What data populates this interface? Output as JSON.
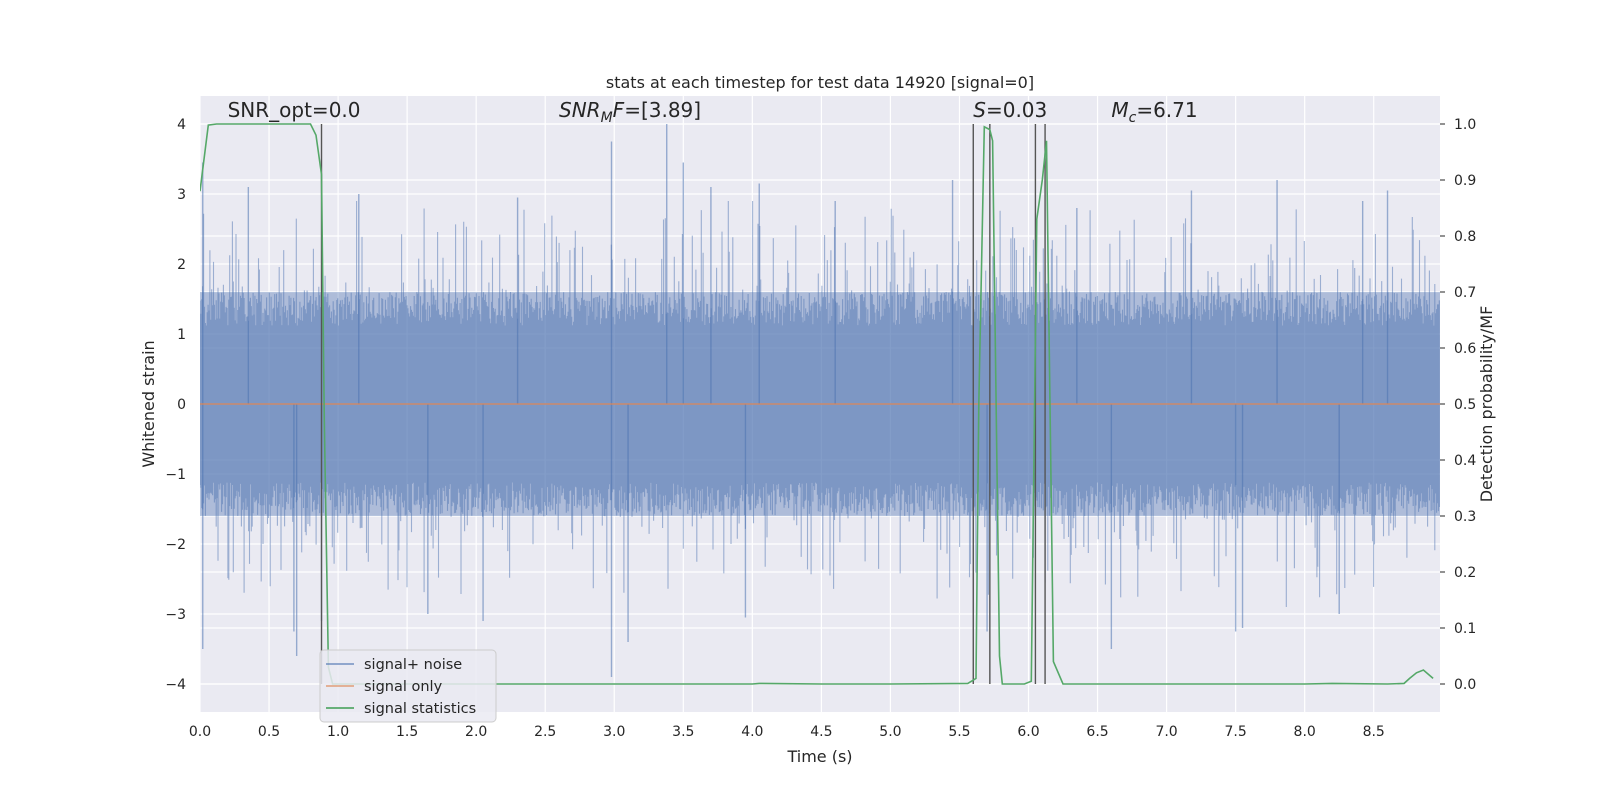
{
  "chart_data": {
    "type": "line",
    "title": "stats at each timestep for test data 14920 [signal=0]",
    "xlabel": "Time (s)",
    "ylabel": "Whitened strain",
    "ylabel_right": "Detection probability/MF",
    "xlim": [
      0.0,
      8.98
    ],
    "ylim": [
      -4.4,
      4.4
    ],
    "ylim_right": [
      -0.05,
      1.05
    ],
    "xticks": [
      "0.0",
      "0.5",
      "1.0",
      "1.5",
      "2.0",
      "2.5",
      "3.0",
      "3.5",
      "4.0",
      "4.5",
      "5.0",
      "5.5",
      "6.0",
      "6.5",
      "7.0",
      "7.5",
      "8.0",
      "8.5"
    ],
    "yticks": [
      "−4",
      "−3",
      "−2",
      "−1",
      "0",
      "1",
      "2",
      "3",
      "4"
    ],
    "yticks_right": [
      "0.0",
      "0.1",
      "0.2",
      "0.3",
      "0.4",
      "0.5",
      "0.6",
      "0.7",
      "0.8",
      "0.9",
      "1.0"
    ],
    "grid": true,
    "annotations": [
      {
        "text": "SNR_opt=0.0",
        "x": 0.2,
        "y": 4.1
      },
      {
        "text": "SNR_MF=[3.89]",
        "x": 2.6,
        "y": 4.1
      },
      {
        "text": "S=0.03",
        "x": 5.6,
        "y": 4.1
      },
      {
        "text": "M_c=6.71",
        "x": 6.6,
        "y": 4.1
      }
    ],
    "series": [
      {
        "name": "signal+ noise",
        "color": "#4c72b0",
        "axis": "left",
        "style": "noise",
        "typical_band": [
          -1.6,
          1.6
        ],
        "spikes": [
          {
            "x": 0.02,
            "y": 3.45
          },
          {
            "x": 0.02,
            "y": -3.5
          },
          {
            "x": 0.35,
            "y": 3.1
          },
          {
            "x": 0.7,
            "y": -3.6
          },
          {
            "x": 0.68,
            "y": -3.25
          },
          {
            "x": 0.88,
            "y": -3.1
          },
          {
            "x": 1.15,
            "y": 3.0
          },
          {
            "x": 1.65,
            "y": -3.0
          },
          {
            "x": 2.05,
            "y": -3.1
          },
          {
            "x": 2.3,
            "y": 2.95
          },
          {
            "x": 2.98,
            "y": 3.75
          },
          {
            "x": 2.98,
            "y": -3.9
          },
          {
            "x": 3.1,
            "y": -3.4
          },
          {
            "x": 3.38,
            "y": 4.0
          },
          {
            "x": 3.5,
            "y": 3.45
          },
          {
            "x": 3.7,
            "y": 3.1
          },
          {
            "x": 3.95,
            "y": -3.05
          },
          {
            "x": 4.05,
            "y": 3.15
          },
          {
            "x": 4.6,
            "y": 2.9
          },
          {
            "x": 5.45,
            "y": 3.2
          },
          {
            "x": 5.7,
            "y": -3.25
          },
          {
            "x": 6.35,
            "y": 2.8
          },
          {
            "x": 6.6,
            "y": -3.5
          },
          {
            "x": 7.18,
            "y": 3.05
          },
          {
            "x": 7.5,
            "y": -3.25
          },
          {
            "x": 7.55,
            "y": -3.2
          },
          {
            "x": 7.8,
            "y": 3.2
          },
          {
            "x": 8.25,
            "y": -3.0
          },
          {
            "x": 8.42,
            "y": 2.9
          },
          {
            "x": 8.6,
            "y": 3.05
          }
        ]
      },
      {
        "name": "signal only",
        "color": "#dd8452",
        "axis": "left",
        "style": "line",
        "x": [
          0.0,
          8.98
        ],
        "y": [
          0.0,
          0.0
        ]
      },
      {
        "name": "signal statistics",
        "color": "#55a868",
        "axis": "right",
        "style": "line",
        "x": [
          0.0,
          0.06,
          0.12,
          0.3,
          0.5,
          0.7,
          0.8,
          0.84,
          0.88,
          0.9,
          0.93,
          0.96,
          1.5,
          2.5,
          3.5,
          4.0,
          4.05,
          4.5,
          5.0,
          5.56,
          5.62,
          5.64,
          5.68,
          5.72,
          5.74,
          5.79,
          5.81,
          5.97,
          6.02,
          6.06,
          6.1,
          6.13,
          6.18,
          6.25,
          6.5,
          7.0,
          8.0,
          8.2,
          8.6,
          8.72,
          8.76,
          8.81,
          8.86,
          8.93
        ],
        "y": [
          0.88,
          0.998,
          1.0,
          1.0,
          1.0,
          1.0,
          1.0,
          0.98,
          0.91,
          0.47,
          0.03,
          0.0,
          0.0,
          0.0,
          0.0,
          0.0,
          0.001,
          0.0,
          0.0,
          0.001,
          0.01,
          0.5,
          0.995,
          0.99,
          0.97,
          0.05,
          0.0,
          0.0,
          0.005,
          0.83,
          0.9,
          0.97,
          0.04,
          0.0,
          0.0,
          0.0,
          0.0,
          0.001,
          0.0,
          0.001,
          0.01,
          0.02,
          0.025,
          0.01
        ]
      }
    ],
    "vlines": [
      0.88,
      5.6,
      5.72,
      6.05,
      6.12
    ],
    "vlines_range": [
      -4.0,
      4.0
    ],
    "legend": {
      "placement": "lower-left",
      "entries": [
        {
          "label": "signal+ noise",
          "color": "#4c72b0"
        },
        {
          "label": "signal only",
          "color": "#dd8452"
        },
        {
          "label": "signal statistics",
          "color": "#55a868"
        }
      ]
    }
  }
}
